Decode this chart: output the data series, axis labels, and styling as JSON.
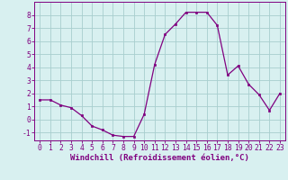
{
  "x": [
    0,
    1,
    2,
    3,
    4,
    5,
    6,
    7,
    8,
    9,
    10,
    11,
    12,
    13,
    14,
    15,
    16,
    17,
    18,
    19,
    20,
    21,
    22,
    23
  ],
  "y": [
    1.5,
    1.5,
    1.1,
    0.9,
    0.3,
    -0.5,
    -0.8,
    -1.2,
    -1.3,
    -1.3,
    0.4,
    4.2,
    6.5,
    7.3,
    8.2,
    8.2,
    8.2,
    7.2,
    3.4,
    4.1,
    2.7,
    1.9,
    0.7,
    2.0
  ],
  "line_color": "#800080",
  "marker": "s",
  "marker_size": 2.0,
  "bg_color": "#d8f0f0",
  "grid_color": "#a8cece",
  "xlabel": "Windchill (Refroidissement éolien,°C)",
  "xlim": [
    -0.5,
    23.5
  ],
  "ylim": [
    -1.6,
    9.0
  ],
  "yticks": [
    -1,
    0,
    1,
    2,
    3,
    4,
    5,
    6,
    7,
    8
  ],
  "xticks": [
    0,
    1,
    2,
    3,
    4,
    5,
    6,
    7,
    8,
    9,
    10,
    11,
    12,
    13,
    14,
    15,
    16,
    17,
    18,
    19,
    20,
    21,
    22,
    23
  ],
  "tick_color": "#800080",
  "label_color": "#800080",
  "spine_color": "#800080",
  "font_size_xlabel": 6.5,
  "font_size_ticks": 5.8
}
